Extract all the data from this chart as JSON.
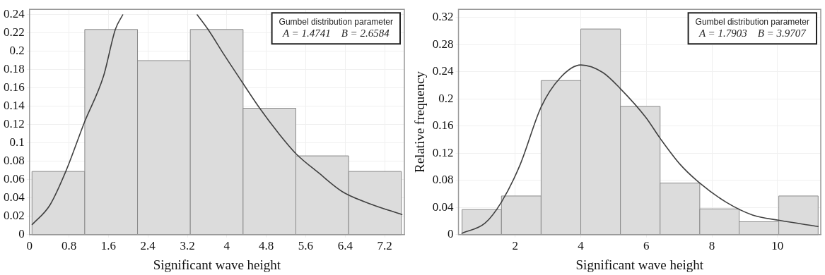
{
  "chart_data": [
    {
      "type": "histogram",
      "xlabel": "Significant wave height",
      "bins": [
        0.05,
        1.12,
        2.19,
        3.26,
        4.33,
        5.4,
        6.47,
        7.54
      ],
      "values": [
        0.069,
        0.224,
        0.19,
        0.224,
        0.138,
        0.086,
        0.069
      ],
      "color": "#dcdcdc",
      "series": [
        {
          "type": "line",
          "color": "#404040",
          "x": [
            0.054,
            0.41,
            0.735,
            1.116,
            1.5,
            1.74,
            1.89,
            2.6,
            3.4,
            3.62,
            3.95,
            4.33,
            4.68,
            5.03,
            5.41,
            5.85,
            6.34,
            6.94,
            7.55
          ],
          "values": [
            0.011,
            0.032,
            0.069,
            0.123,
            0.173,
            0.224,
            0.24,
            null,
            0.24,
            0.224,
            0.196,
            0.165,
            0.137,
            0.112,
            0.088,
            0.068,
            0.047,
            0.033,
            0.022
          ]
        }
      ],
      "annotations": [
        "Gumbel distribution parameter",
        "A = 1.4741    B = 2.6584"
      ],
      "xlim": [
        0,
        7.6
      ],
      "ylim": [
        0,
        0.246
      ],
      "xticks": [
        0,
        0.8,
        1.6,
        2.4,
        3.2,
        4,
        4.8,
        5.6,
        6.4,
        7.2
      ],
      "yticks": [
        0,
        0.02,
        0.04,
        0.06,
        0.08,
        0.1,
        0.12,
        0.14,
        0.16,
        0.18,
        0.2,
        0.22,
        0.24
      ],
      "grid": true,
      "legend": false
    },
    {
      "type": "histogram",
      "xlabel": "Significant wave height",
      "ylabel": "Relative frequency",
      "bins": [
        0.38,
        1.58,
        2.79,
        4.0,
        5.21,
        6.42,
        7.63,
        8.83,
        10.04,
        11.24
      ],
      "values": [
        0.037,
        0.057,
        0.227,
        0.303,
        0.189,
        0.076,
        0.038,
        0.019,
        0.057
      ],
      "color": "#dcdcdc",
      "series": [
        {
          "type": "line",
          "color": "#404040",
          "x": [
            0.375,
            1.08,
            1.58,
            2.15,
            2.79,
            3.37,
            4.0,
            4.67,
            5.21,
            5.98,
            6.42,
            7.04,
            7.63,
            8.43,
            9.24,
            10.06,
            11.24
          ],
          "values": [
            0.002,
            0.017,
            0.048,
            0.103,
            0.188,
            0.231,
            0.25,
            0.239,
            0.215,
            0.173,
            0.142,
            0.103,
            0.076,
            0.048,
            0.029,
            0.021,
            0.012
          ]
        }
      ],
      "annotations": [
        "Gumbel distribution parameter",
        "A = 1.7903    B = 3.9707"
      ],
      "xlim": [
        0.27,
        11.32
      ],
      "ylim": [
        0,
        0.332
      ],
      "xticks": [
        2,
        4,
        6,
        8,
        10
      ],
      "yticks": [
        0,
        0.04,
        0.08,
        0.12,
        0.16,
        0.2,
        0.24,
        0.28,
        0.32
      ],
      "grid": true,
      "legend": false
    }
  ]
}
